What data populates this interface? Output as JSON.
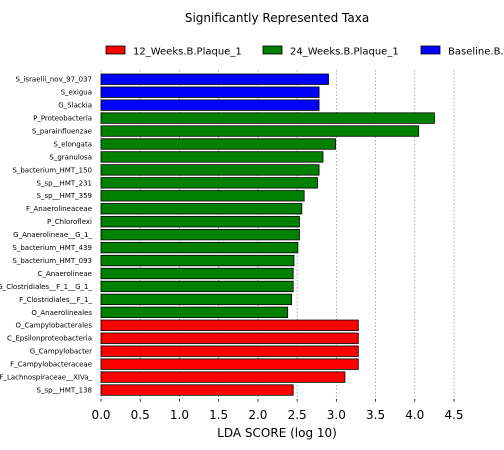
{
  "chart_data": {
    "type": "bar",
    "orientation": "horizontal",
    "title": "Significantly Represented Taxa",
    "xlabel": "LDA SCORE (log 10)",
    "ylabel": "",
    "xlim": [
      0,
      4.5
    ],
    "xticks": [
      "0.0",
      "0.5",
      "1.0",
      "1.5",
      "2.0",
      "2.5",
      "3.0",
      "3.5",
      "4.0",
      "4.5"
    ],
    "grid": "vertical dotted lines",
    "legend_position": "top",
    "colors": {
      "12_Weeks.B.Plaque_1": "#ff0000",
      "24_Weeks.B.Plaque_1": "#008000",
      "Baseline.B.Plaque_1": "#0000ff"
    },
    "legend": [
      {
        "name": "12_Weeks.B.Plaque_1",
        "color": "#ff0000"
      },
      {
        "name": "24_Weeks.B.Plaque_1",
        "color": "#008000"
      },
      {
        "name": "Baseline.B.Plaque_1",
        "color": "#0000ff"
      }
    ],
    "bars": [
      {
        "label": "S_israelii_nov_97_037",
        "value": 2.9,
        "group": "Baseline.B.Plaque_1"
      },
      {
        "label": "S_exigua",
        "value": 2.78,
        "group": "Baseline.B.Plaque_1"
      },
      {
        "label": "G_Slackia",
        "value": 2.78,
        "group": "Baseline.B.Plaque_1"
      },
      {
        "label": "P_Proteobacteria",
        "value": 4.25,
        "group": "24_Weeks.B.Plaque_1"
      },
      {
        "label": "S_parainfluenzae",
        "value": 4.05,
        "group": "24_Weeks.B.Plaque_1"
      },
      {
        "label": "S_elongata",
        "value": 2.99,
        "group": "24_Weeks.B.Plaque_1"
      },
      {
        "label": "S_granulosa",
        "value": 2.83,
        "group": "24_Weeks.B.Plaque_1"
      },
      {
        "label": "S_bacterium_HMT_150",
        "value": 2.78,
        "group": "24_Weeks.B.Plaque_1"
      },
      {
        "label": "S_sp__HMT_231",
        "value": 2.76,
        "group": "24_Weeks.B.Plaque_1"
      },
      {
        "label": "S_sp__HMT_359",
        "value": 2.59,
        "group": "24_Weeks.B.Plaque_1"
      },
      {
        "label": "F_Anaerolineaceae",
        "value": 2.56,
        "group": "24_Weeks.B.Plaque_1"
      },
      {
        "label": "P_Chloroflexi",
        "value": 2.53,
        "group": "24_Weeks.B.Plaque_1"
      },
      {
        "label": "G_Anaerolineae__G_1_",
        "value": 2.53,
        "group": "24_Weeks.B.Plaque_1"
      },
      {
        "label": "S_bacterium_HMT_439",
        "value": 2.51,
        "group": "24_Weeks.B.Plaque_1"
      },
      {
        "label": "S_bacterium_HMT_093",
        "value": 2.46,
        "group": "24_Weeks.B.Plaque_1"
      },
      {
        "label": "C_Anaerolineae",
        "value": 2.45,
        "group": "24_Weeks.B.Plaque_1"
      },
      {
        "label": "G_Clostridiales__F_1__G_1_",
        "value": 2.45,
        "group": "24_Weeks.B.Plaque_1"
      },
      {
        "label": "F_Clostridiales__F_1_",
        "value": 2.43,
        "group": "24_Weeks.B.Plaque_1"
      },
      {
        "label": "O_Anaerolineales",
        "value": 2.38,
        "group": "24_Weeks.B.Plaque_1"
      },
      {
        "label": "O_Campylobacterales",
        "value": 3.28,
        "group": "12_Weeks.B.Plaque_1"
      },
      {
        "label": "C_Epsilonproteobacteria",
        "value": 3.28,
        "group": "12_Weeks.B.Plaque_1"
      },
      {
        "label": "G_Campylobacter",
        "value": 3.28,
        "group": "12_Weeks.B.Plaque_1"
      },
      {
        "label": "F_Campylobacteraceae",
        "value": 3.28,
        "group": "12_Weeks.B.Plaque_1"
      },
      {
        "label": "F_Lachnospiraceae__XIVa_",
        "value": 3.11,
        "group": "12_Weeks.B.Plaque_1"
      },
      {
        "label": "S_sp__HMT_138",
        "value": 2.45,
        "group": "12_Weeks.B.Plaque_1"
      }
    ]
  }
}
